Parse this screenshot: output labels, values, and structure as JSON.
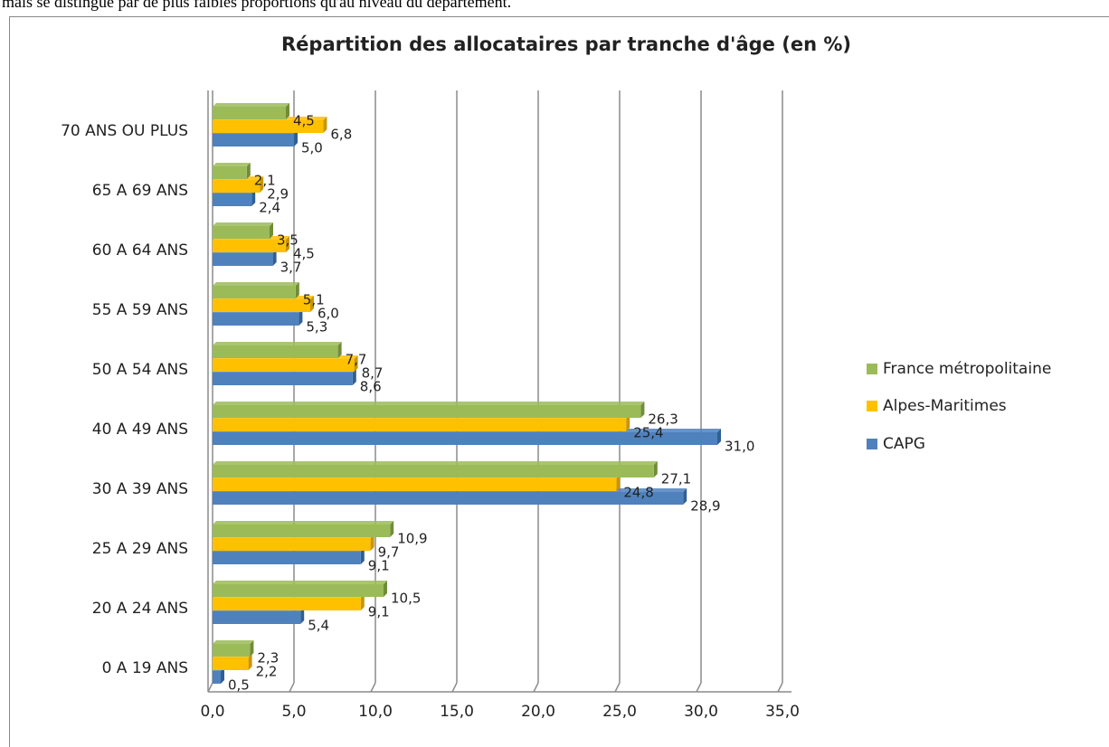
{
  "intro_text": "mais se distingue par de plus faibles proportions qu'au niveau du département.",
  "chart_data": {
    "type": "bar",
    "orientation": "horizontal",
    "title": "Répartition des allocataires par tranche d'âge (en %)",
    "categories": [
      "0 A 19 ANS",
      "20 A 24 ANS",
      "25 A 29 ANS",
      "30 A 39 ANS",
      "40 A 49 ANS",
      "50 A 54 ANS",
      "55 A 59 ANS",
      "60 A 64 ANS",
      "65 A 69 ANS",
      "70 ANS OU PLUS"
    ],
    "series": [
      {
        "name": "CAPG",
        "color": "#4f81bd",
        "values": [
          0.5,
          5.4,
          9.1,
          28.9,
          31.0,
          8.6,
          5.3,
          3.7,
          2.4,
          5.0
        ],
        "value_labels": [
          "0,5",
          "5,4",
          "9,1",
          "28,9",
          "31,0",
          "8,6",
          "5,3",
          "3,7",
          "2,4",
          "5,0"
        ]
      },
      {
        "name": "Alpes-Maritimes",
        "color": "#ffc000",
        "values": [
          2.2,
          9.1,
          9.7,
          24.8,
          25.4,
          8.7,
          6.0,
          4.5,
          2.9,
          6.8
        ],
        "value_labels": [
          "2,2",
          "9,1",
          "9,7",
          "24,8",
          "25,4",
          "8,7",
          "6,0",
          "4,5",
          "2,9",
          "6,8"
        ]
      },
      {
        "name": "France métropolitaine",
        "color": "#9bbb59",
        "values": [
          2.3,
          10.5,
          10.9,
          27.1,
          26.3,
          7.7,
          5.1,
          3.5,
          2.1,
          4.5
        ],
        "value_labels": [
          "2,3",
          "10,5",
          "10,9",
          "27,1",
          "26,3",
          "7,7",
          "5,1",
          "3,5",
          "2,1",
          "4,5"
        ]
      }
    ],
    "xlim": [
      0,
      35
    ],
    "xticks": [
      {
        "value": 0,
        "label": "0,0"
      },
      {
        "value": 5,
        "label": "5,0"
      },
      {
        "value": 10,
        "label": "10,0"
      },
      {
        "value": 15,
        "label": "15,0"
      },
      {
        "value": 20,
        "label": "20,0"
      },
      {
        "value": 25,
        "label": "25,0"
      },
      {
        "value": 30,
        "label": "30,0"
      },
      {
        "value": 35,
        "label": "35,0"
      }
    ],
    "grid": true,
    "legend": "right"
  }
}
